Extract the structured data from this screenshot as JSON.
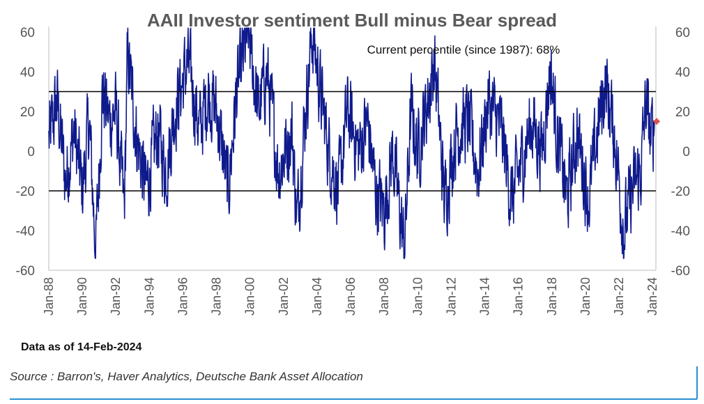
{
  "chart_data": {
    "type": "line",
    "title": "AAII Investor sentiment Bull minus Bear spread",
    "annotation": "Current percentile (since 1987): 68%",
    "data_as_of": "Data as of 14-Feb-2024",
    "source": "Source : Barron's, Haver Analytics, Deutsche Bank Asset Allocation",
    "ylim": [
      -60,
      60
    ],
    "yticks": [
      -60,
      -40,
      -20,
      0,
      20,
      40,
      60
    ],
    "x_start_year": 1988,
    "x_end_year": 2024.2,
    "x_tick_labels": [
      "Jan-88",
      "Jan-90",
      "Jan-92",
      "Jan-94",
      "Jan-96",
      "Jan-98",
      "Jan-00",
      "Jan-02",
      "Jan-04",
      "Jan-06",
      "Jan-08",
      "Jan-10",
      "Jan-12",
      "Jan-14",
      "Jan-16",
      "Jan-18",
      "Jan-20",
      "Jan-22",
      "Jan-24"
    ],
    "x_tick_years": [
      1988,
      1990,
      1992,
      1994,
      1996,
      1998,
      2000,
      2002,
      2004,
      2006,
      2008,
      2010,
      2012,
      2014,
      2016,
      2018,
      2020,
      2022,
      2024
    ],
    "reference_lines": [
      30,
      -20
    ],
    "current_point": {
      "year": 2024.12,
      "value": 15
    },
    "series": [
      {
        "name": "Bull minus Bear spread (weekly)",
        "frequency": "weekly",
        "approx_envelope": [
          {
            "year": 1988.0,
            "value": 5
          },
          {
            "year": 1988.5,
            "value": 25
          },
          {
            "year": 1989.0,
            "value": -15
          },
          {
            "year": 1989.5,
            "value": 10
          },
          {
            "year": 1990.0,
            "value": -20
          },
          {
            "year": 1990.4,
            "value": 15
          },
          {
            "year": 1990.8,
            "value": -50
          },
          {
            "year": 1991.2,
            "value": 30
          },
          {
            "year": 1991.6,
            "value": 15
          },
          {
            "year": 1992.0,
            "value": 20
          },
          {
            "year": 1992.5,
            "value": -30
          },
          {
            "year": 1992.7,
            "value": 50
          },
          {
            "year": 1993.2,
            "value": 10
          },
          {
            "year": 1993.8,
            "value": -20
          },
          {
            "year": 1994.5,
            "value": 10
          },
          {
            "year": 1995.0,
            "value": -10
          },
          {
            "year": 1995.5,
            "value": 20
          },
          {
            "year": 1996.3,
            "value": 45
          },
          {
            "year": 1997.0,
            "value": 10
          },
          {
            "year": 1997.5,
            "value": 30
          },
          {
            "year": 1998.0,
            "value": 20
          },
          {
            "year": 1998.7,
            "value": -20
          },
          {
            "year": 1999.2,
            "value": 30
          },
          {
            "year": 1999.9,
            "value": 60
          },
          {
            "year": 2000.5,
            "value": 20
          },
          {
            "year": 2001.0,
            "value": 40
          },
          {
            "year": 2001.7,
            "value": -10
          },
          {
            "year": 2002.5,
            "value": 10
          },
          {
            "year": 2002.8,
            "value": -35
          },
          {
            "year": 2003.3,
            "value": 20
          },
          {
            "year": 2003.7,
            "value": 60
          },
          {
            "year": 2004.2,
            "value": 30
          },
          {
            "year": 2004.7,
            "value": 0
          },
          {
            "year": 2005.3,
            "value": -20
          },
          {
            "year": 2005.8,
            "value": 20
          },
          {
            "year": 2006.5,
            "value": 0
          },
          {
            "year": 2007.0,
            "value": 15
          },
          {
            "year": 2007.5,
            "value": -20
          },
          {
            "year": 2008.0,
            "value": -30
          },
          {
            "year": 2008.5,
            "value": 0
          },
          {
            "year": 2009.2,
            "value": -50
          },
          {
            "year": 2009.6,
            "value": 20
          },
          {
            "year": 2010.0,
            "value": 0
          },
          {
            "year": 2010.7,
            "value": 30
          },
          {
            "year": 2011.0,
            "value": 45
          },
          {
            "year": 2011.6,
            "value": -25
          },
          {
            "year": 2012.3,
            "value": 10
          },
          {
            "year": 2013.0,
            "value": 15
          },
          {
            "year": 2013.6,
            "value": -10
          },
          {
            "year": 2014.2,
            "value": 25
          },
          {
            "year": 2015.0,
            "value": 10
          },
          {
            "year": 2015.6,
            "value": -25
          },
          {
            "year": 2016.2,
            "value": -5
          },
          {
            "year": 2016.8,
            "value": 15
          },
          {
            "year": 2017.4,
            "value": 0
          },
          {
            "year": 2017.9,
            "value": 42
          },
          {
            "year": 2018.3,
            "value": 10
          },
          {
            "year": 2018.9,
            "value": -25
          },
          {
            "year": 2019.5,
            "value": 10
          },
          {
            "year": 2020.2,
            "value": -25
          },
          {
            "year": 2020.8,
            "value": 15
          },
          {
            "year": 2021.2,
            "value": 35
          },
          {
            "year": 2021.7,
            "value": 10
          },
          {
            "year": 2022.3,
            "value": -40
          },
          {
            "year": 2022.8,
            "value": -20
          },
          {
            "year": 2023.3,
            "value": -10
          },
          {
            "year": 2023.6,
            "value": 25
          },
          {
            "year": 2023.9,
            "value": 5
          },
          {
            "year": 2024.12,
            "value": 15
          }
        ]
      }
    ]
  },
  "colors": {
    "series": "#0f1a8c",
    "reference_line": "#000000",
    "current_point": "#d9534f",
    "axis": "#bbbbbb",
    "frame": "#2a8fd1"
  }
}
